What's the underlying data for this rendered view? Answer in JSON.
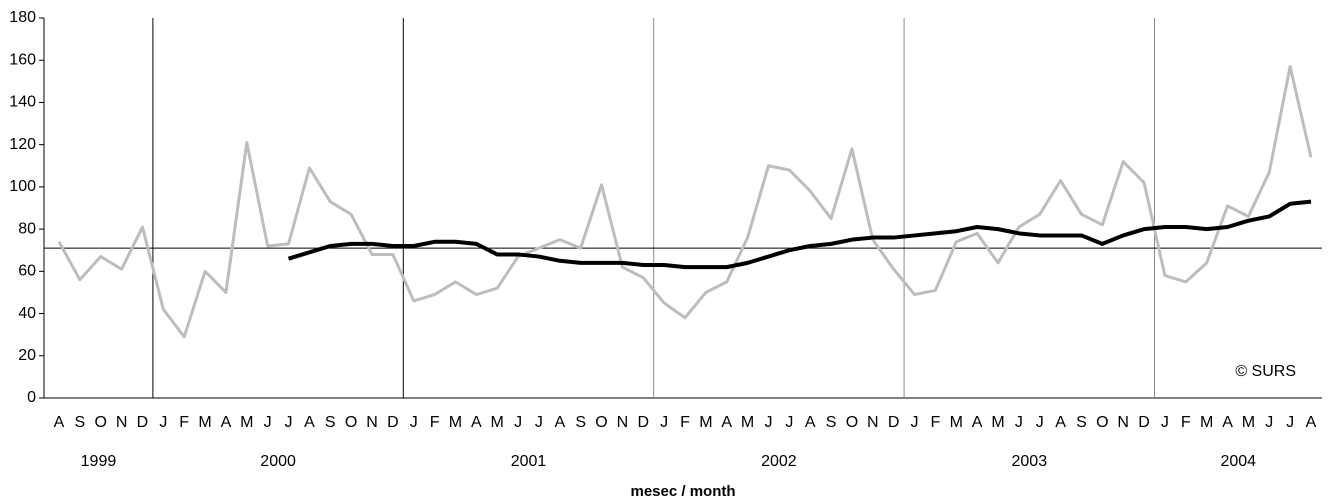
{
  "chart_data": {
    "type": "line",
    "x_label": "mesec / month",
    "annotation": "© SURS",
    "categories": [
      "A",
      "S",
      "O",
      "N",
      "D",
      "J",
      "F",
      "M",
      "A",
      "M",
      "J",
      "J",
      "A",
      "S",
      "O",
      "N",
      "D",
      "J",
      "F",
      "M",
      "A",
      "M",
      "J",
      "J",
      "A",
      "S",
      "O",
      "N",
      "D",
      "J",
      "F",
      "M",
      "A",
      "M",
      "J",
      "J",
      "A",
      "S",
      "O",
      "N",
      "D",
      "J",
      "F",
      "M",
      "A",
      "M",
      "J",
      "J",
      "A",
      "S",
      "O",
      "N",
      "D",
      "J",
      "F",
      "M",
      "A",
      "M",
      "J",
      "J",
      "A"
    ],
    "years": [
      "1999",
      "2000",
      "2001",
      "2002",
      "2003",
      "2004"
    ],
    "ylim": [
      0,
      180
    ],
    "yticks": [
      0,
      20,
      40,
      60,
      80,
      100,
      120,
      140,
      160,
      180
    ],
    "reference_line": 71,
    "series": [
      {
        "color": "#bdbdbd",
        "width": 3,
        "values": [
          74,
          56,
          67,
          61,
          81,
          42,
          29,
          60,
          50,
          121,
          72,
          73,
          109,
          93,
          87,
          68,
          68,
          46,
          49,
          55,
          49,
          52,
          67,
          71,
          75,
          71,
          101,
          62,
          57,
          45,
          38,
          50,
          55,
          76,
          110,
          108,
          98,
          85,
          118,
          75,
          61,
          49,
          51,
          74,
          78,
          64,
          81,
          87,
          103,
          87,
          82,
          112,
          102,
          58,
          55,
          64,
          91,
          86,
          107,
          157,
          114
        ]
      },
      {
        "color": "#000000",
        "width": 4,
        "values": [
          null,
          null,
          null,
          null,
          null,
          null,
          null,
          null,
          null,
          null,
          null,
          66,
          69,
          72,
          73,
          73,
          72,
          72,
          74,
          74,
          73,
          68,
          68,
          67,
          65,
          64,
          64,
          64,
          63,
          63,
          62,
          62,
          62,
          64,
          67,
          70,
          72,
          73,
          75,
          76,
          76,
          77,
          78,
          79,
          81,
          80,
          78,
          77,
          77,
          77,
          73,
          77,
          80,
          81,
          81,
          80,
          81,
          84,
          86,
          92,
          93
        ]
      }
    ]
  }
}
